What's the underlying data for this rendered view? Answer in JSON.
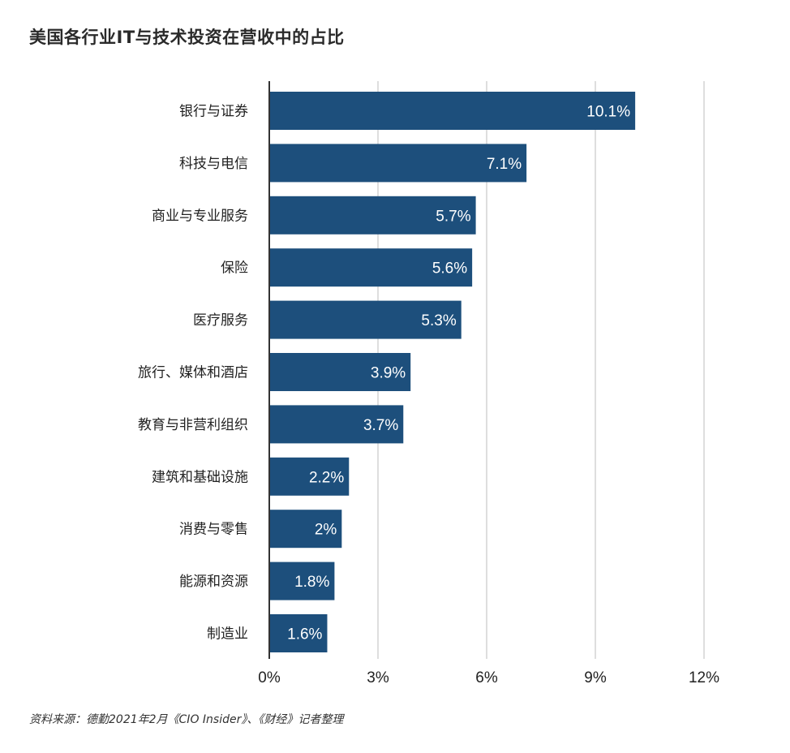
{
  "chart_data": {
    "type": "bar",
    "orientation": "horizontal",
    "title": "美国各行业IT与技术投资在营收中的占比",
    "source": "资料来源：德勤2021年2月《CIO Insider》、《财经》记者整理",
    "categories": [
      "银行与证券",
      "科技与电信",
      "商业与专业服务",
      "保险",
      "医疗服务",
      "旅行、媒体和酒店",
      "教育与非营利组织",
      "建筑和基础设施",
      "消费与零售",
      "能源和资源",
      "制造业"
    ],
    "values": [
      10.1,
      7.1,
      5.7,
      5.6,
      5.3,
      3.9,
      3.7,
      2.2,
      2,
      1.8,
      1.6
    ],
    "value_labels": [
      "10.1%",
      "7.1%",
      "5.7%",
      "5.6%",
      "5.3%",
      "3.9%",
      "3.7%",
      "2.2%",
      "2%",
      "1.8%",
      "1.6%"
    ],
    "xlim": [
      0,
      12
    ],
    "xticks": [
      0,
      3,
      6,
      9,
      12
    ],
    "xtick_labels": [
      "0%",
      "3%",
      "6%",
      "9%",
      "12%"
    ],
    "xlabel": "",
    "ylabel": "",
    "grid": "vertical",
    "legend": "none",
    "bar_color": "#1d4f7c",
    "grid_color": "#cccccc",
    "axis_color": "#333333"
  }
}
